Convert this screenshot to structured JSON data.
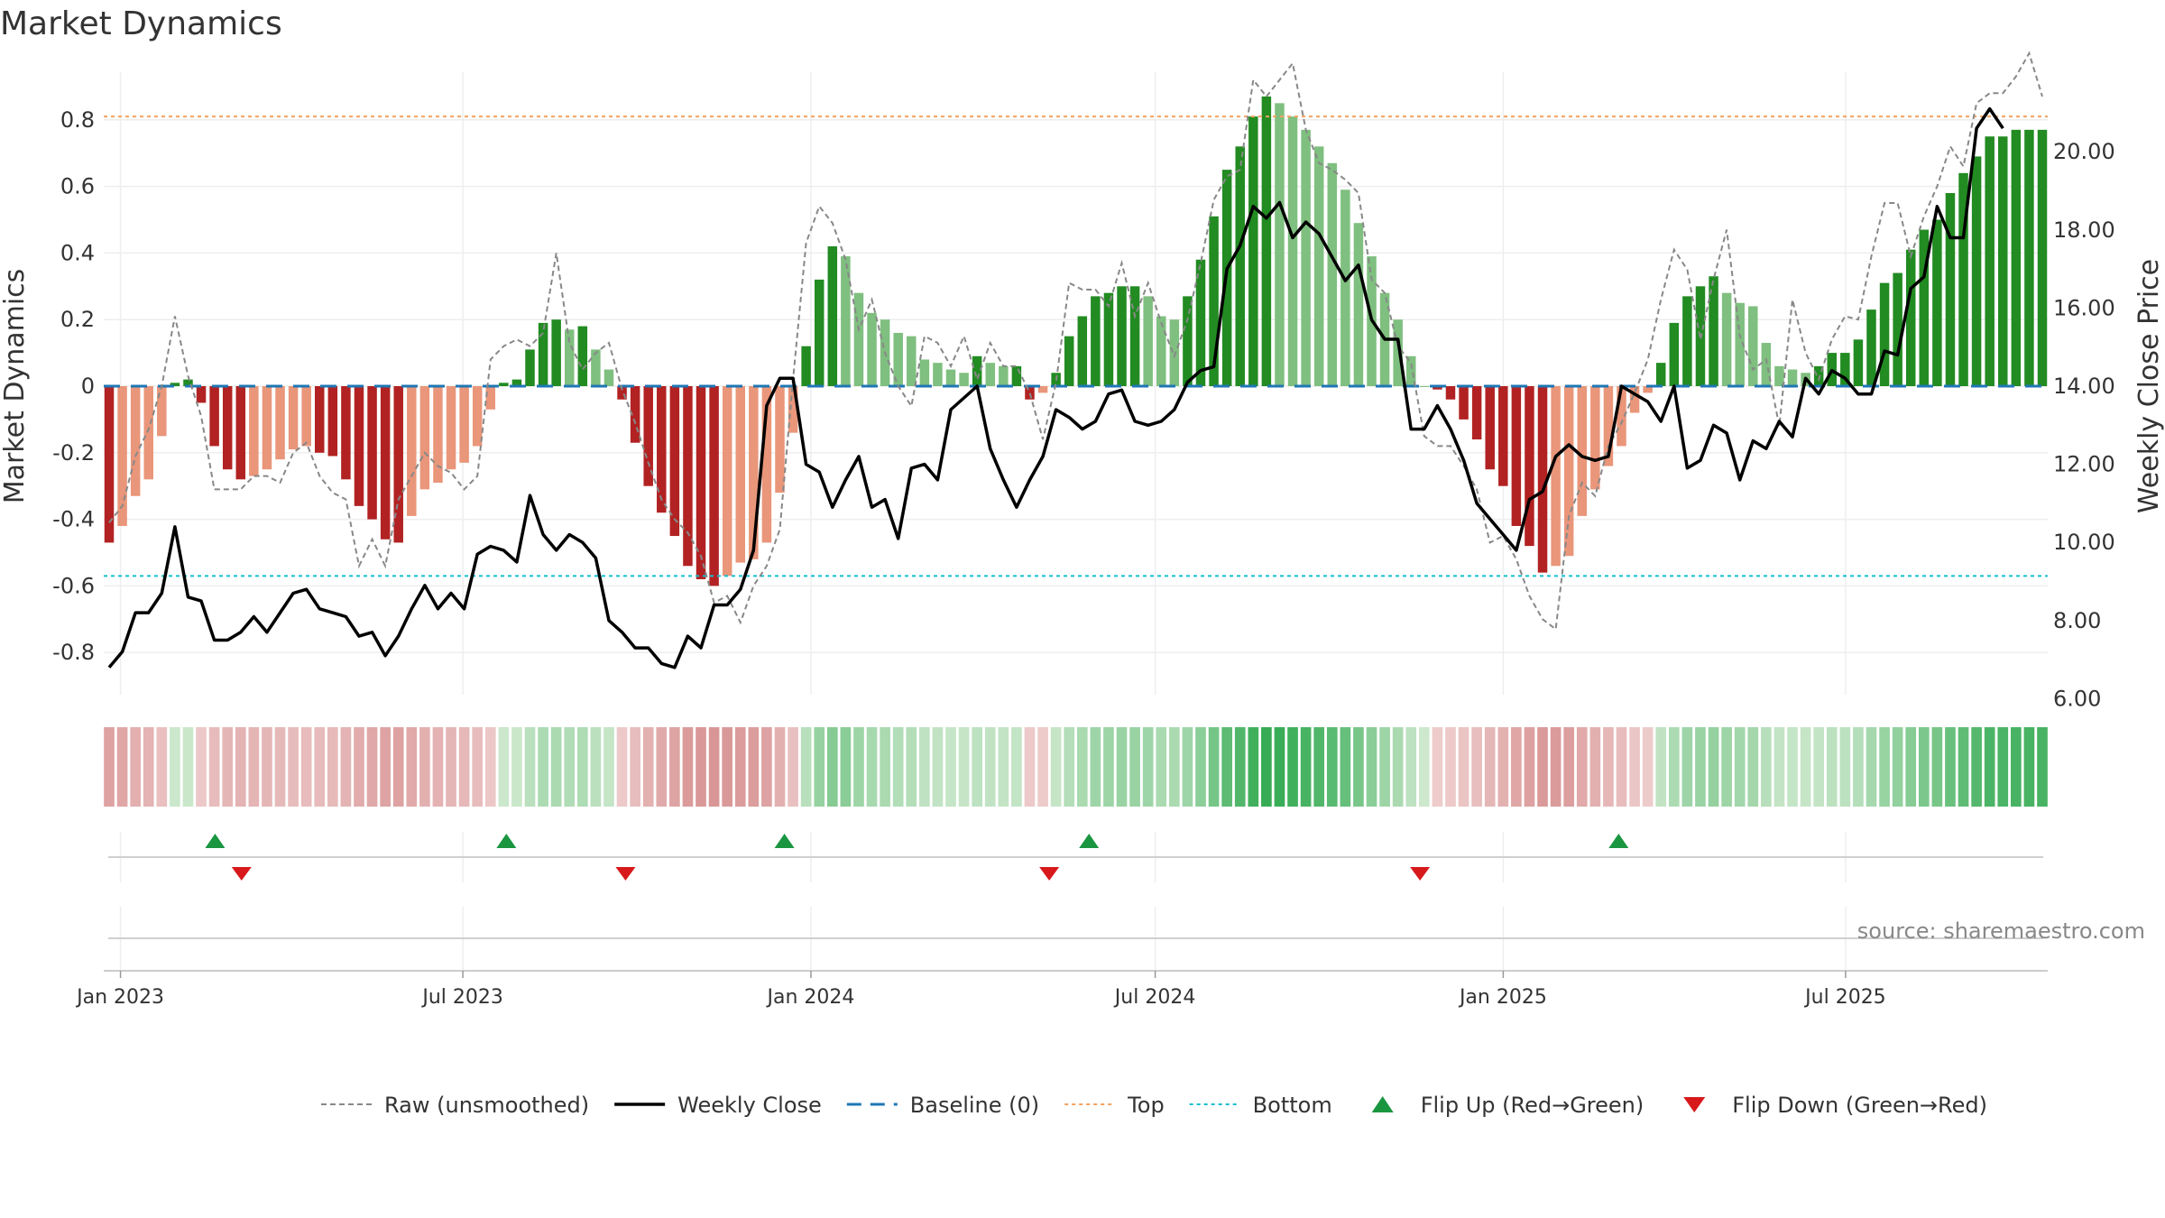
{
  "chart_data": {
    "type": "bar",
    "title": "Market Dynamics",
    "ylabel": "Market Dynamics",
    "y2label": "Weekly Close Price",
    "ylim": [
      -0.95,
      0.95
    ],
    "y2lim": [
      5.7,
      21.8
    ],
    "yticks": [
      "0.8",
      "0.6",
      "0.4",
      "0.2",
      "0",
      "-0.2",
      "-0.4",
      "-0.6",
      "-0.8"
    ],
    "y2ticks": [
      "20.00",
      "18.00",
      "16.00",
      "14.00",
      "12.00",
      "10.00",
      "8.00",
      "6.00"
    ],
    "xtick_labels": [
      "Jan 2023",
      "Jul 2023",
      "Jan 2024",
      "Jul 2024",
      "Jan 2025",
      "Jul 2025"
    ],
    "xtick_dates": [
      "2023-01-01",
      "2023-07-01",
      "2024-01-01",
      "2024-07-01",
      "2025-01-01",
      "2025-07-01"
    ],
    "date_range": [
      "2022-12-26",
      "2025-10-13"
    ],
    "top_level": 0.81,
    "bottom_level": -0.57,
    "baseline": 0,
    "colors": {
      "strong_green": "#228b22",
      "weak_green": "#7fbf7f",
      "strong_red": "#b22222",
      "weak_red": "#e9967a",
      "close_line": "#000000",
      "raw_line": "#888888",
      "baseline": "#1f77b4",
      "top": "#f4a261",
      "bottom": "#17becf",
      "flip_up": "#1a9641",
      "flip_down": "#d7191c"
    },
    "series": [
      {
        "name": "Market Dynamics",
        "values": [
          -0.47,
          -0.42,
          -0.33,
          -0.28,
          -0.15,
          0.01,
          0.02,
          -0.05,
          -0.18,
          -0.25,
          -0.28,
          -0.27,
          -0.25,
          -0.22,
          -0.19,
          -0.18,
          -0.2,
          -0.21,
          -0.28,
          -0.36,
          -0.4,
          -0.46,
          -0.47,
          -0.39,
          -0.31,
          -0.29,
          -0.25,
          -0.23,
          -0.18,
          -0.07,
          0.01,
          0.02,
          0.11,
          0.19,
          0.2,
          0.17,
          0.18,
          0.11,
          0.05,
          -0.04,
          -0.17,
          -0.3,
          -0.38,
          -0.45,
          -0.54,
          -0.58,
          -0.6,
          -0.57,
          -0.53,
          -0.52,
          -0.47,
          -0.32,
          -0.14,
          0.12,
          0.32,
          0.42,
          0.39,
          0.28,
          0.22,
          0.2,
          0.16,
          0.15,
          0.08,
          0.07,
          0.05,
          0.04,
          0.09,
          0.07,
          0.06,
          0.06,
          -0.04,
          -0.02,
          0.04,
          0.15,
          0.21,
          0.27,
          0.28,
          0.3,
          0.3,
          0.27,
          0.21,
          0.2,
          0.27,
          0.38,
          0.51,
          0.65,
          0.72,
          0.81,
          0.87,
          0.85,
          0.81,
          0.77,
          0.72,
          0.67,
          0.59,
          0.49,
          0.39,
          0.28,
          0.2,
          0.09,
          0.0,
          -0.01,
          -0.04,
          -0.1,
          -0.16,
          -0.25,
          -0.3,
          -0.42,
          -0.48,
          -0.56,
          -0.54,
          -0.51,
          -0.39,
          -0.31,
          -0.24,
          -0.18,
          -0.08,
          -0.02,
          0.07,
          0.19,
          0.27,
          0.3,
          0.33,
          0.28,
          0.25,
          0.24,
          0.13,
          0.06,
          0.05,
          0.04,
          0.06,
          0.1,
          0.1,
          0.14,
          0.23,
          0.31,
          0.34,
          0.41,
          0.47,
          0.5,
          0.58,
          0.64,
          0.69,
          0.75,
          0.75,
          0.77,
          0.77,
          0.77
        ]
      },
      {
        "name": "Raw (unsmoothed)",
        "values": [
          -0.41,
          -0.36,
          -0.21,
          -0.13,
          0.0,
          0.21,
          0.03,
          -0.09,
          -0.31,
          -0.31,
          -0.31,
          -0.27,
          -0.27,
          -0.29,
          -0.2,
          -0.17,
          -0.27,
          -0.32,
          -0.34,
          -0.54,
          -0.46,
          -0.54,
          -0.34,
          -0.27,
          -0.2,
          -0.24,
          -0.26,
          -0.31,
          -0.27,
          0.08,
          0.12,
          0.14,
          0.12,
          0.16,
          0.4,
          0.13,
          0.05,
          0.1,
          0.13,
          -0.01,
          -0.11,
          -0.23,
          -0.34,
          -0.4,
          -0.44,
          -0.51,
          -0.65,
          -0.63,
          -0.71,
          -0.6,
          -0.54,
          -0.43,
          0.02,
          0.43,
          0.54,
          0.49,
          0.38,
          0.17,
          0.26,
          0.1,
          0.0,
          -0.06,
          0.15,
          0.13,
          0.06,
          0.15,
          0.02,
          0.13,
          0.06,
          0.06,
          -0.02,
          -0.16,
          0.01,
          0.31,
          0.29,
          0.29,
          0.24,
          0.37,
          0.21,
          0.31,
          0.19,
          0.09,
          0.2,
          0.37,
          0.56,
          0.63,
          0.65,
          0.92,
          0.87,
          0.92,
          0.97,
          0.77,
          0.67,
          0.65,
          0.62,
          0.58,
          0.32,
          0.28,
          0.12,
          0.07,
          -0.15,
          -0.18,
          -0.18,
          -0.24,
          -0.31,
          -0.47,
          -0.45,
          -0.52,
          -0.63,
          -0.7,
          -0.73,
          -0.39,
          -0.29,
          -0.33,
          -0.18,
          -0.11,
          -0.02,
          0.08,
          0.26,
          0.41,
          0.35,
          0.14,
          0.32,
          0.47,
          0.15,
          0.05,
          0.08,
          -0.12,
          0.26,
          0.1,
          0.02,
          0.14,
          0.21,
          0.2,
          0.39,
          0.55,
          0.55,
          0.39,
          0.51,
          0.6,
          0.72,
          0.66,
          0.85,
          0.88,
          0.88,
          0.93,
          1.0,
          0.87
        ]
      },
      {
        "name": "Weekly Close",
        "values": [
          6.8,
          7.2,
          8.2,
          8.2,
          8.7,
          10.4,
          8.6,
          8.5,
          7.5,
          7.5,
          7.7,
          8.1,
          7.7,
          8.2,
          8.7,
          8.8,
          8.3,
          8.2,
          8.1,
          7.6,
          7.7,
          7.1,
          7.6,
          8.3,
          8.9,
          8.3,
          8.7,
          8.3,
          9.7,
          9.9,
          9.8,
          9.5,
          11.2,
          10.2,
          9.8,
          10.2,
          10.0,
          9.6,
          8.0,
          7.7,
          7.3,
          7.3,
          6.9,
          6.8,
          7.6,
          7.3,
          8.4,
          8.4,
          8.8,
          9.8,
          13.5,
          14.2,
          14.2,
          12.0,
          11.8,
          10.9,
          11.6,
          12.2,
          10.9,
          11.1,
          10.1,
          11.9,
          12.0,
          11.6,
          13.4,
          13.7,
          14.0,
          12.4,
          11.6,
          10.9,
          11.6,
          12.2,
          13.4,
          13.2,
          12.9,
          13.1,
          13.8,
          13.9,
          13.1,
          13.0,
          13.1,
          13.4,
          14.1,
          14.4,
          14.5,
          17.0,
          17.6,
          18.6,
          18.3,
          18.7,
          17.8,
          18.2,
          17.9,
          17.3,
          16.7,
          17.1,
          15.7,
          15.2,
          15.2,
          12.9,
          12.9,
          13.5,
          12.9,
          12.1,
          11.0,
          10.6,
          10.2,
          9.8,
          11.1,
          11.3,
          12.2,
          12.5,
          12.2,
          12.1,
          12.2,
          14.0,
          13.8,
          13.6,
          13.1,
          14.0,
          11.9,
          12.1,
          13.0,
          12.8,
          11.6,
          12.6,
          12.4,
          13.1,
          12.7,
          14.2,
          13.8,
          14.4,
          14.2,
          13.8,
          13.8,
          14.9,
          14.8,
          16.5,
          16.8,
          18.6,
          17.8,
          17.8,
          20.6,
          21.1,
          20.6
        ]
      }
    ],
    "flip_up_dates": [
      "2023-02-20",
      "2023-07-24",
      "2023-12-18",
      "2024-05-27",
      "2025-03-03"
    ],
    "flip_down_dates": [
      "2023-03-06",
      "2023-09-25",
      "2024-05-06",
      "2024-11-18"
    ],
    "legend": [
      {
        "label": "Raw (unsmoothed)",
        "style": "dashed-gray"
      },
      {
        "label": "Weekly Close",
        "style": "solid-black"
      },
      {
        "label": "Baseline (0)",
        "style": "dashed-blue"
      },
      {
        "label": "Top",
        "style": "dotted-orange"
      },
      {
        "label": "Bottom",
        "style": "dotted-cyan"
      },
      {
        "label": "Flip Up (Red→Green)",
        "style": "triangle-up-green"
      },
      {
        "label": "Flip Down (Green→Red)",
        "style": "triangle-down-red"
      }
    ],
    "legend_position": "bottom-center",
    "grid": true
  },
  "source_text": "source: sharemaestro.com"
}
